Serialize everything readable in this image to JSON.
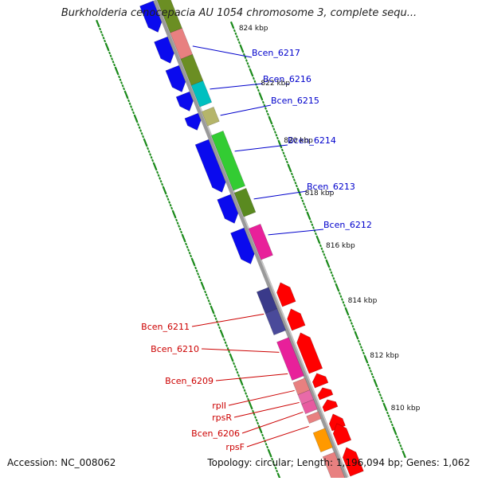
{
  "title": "Burkholderia cenocepacia AU 1054 chromosome 3, complete sequ...",
  "accession": "Accession: NC_008062",
  "topology": "Topology: circular; Length: 1,196,094 bp; Genes: 1,062",
  "colors": {
    "backbone": "#8a8a8a",
    "tick": "#1a8a1a",
    "forward_label": "#0000cc",
    "reverse_label": "#cc0000",
    "kbp_label": "#111111"
  },
  "kbp_labels": [
    "824 kbp",
    "822 kbp",
    "820 kbp",
    "818 kbp",
    "816 kbp",
    "814 kbp",
    "812 kbp",
    "810 kbp"
  ],
  "forward_genes": [
    "Bcen_6217",
    "Bcen_6216",
    "Bcen_6215",
    "Bcen_6214",
    "Bcen_6213",
    "Bcen_6212"
  ],
  "reverse_genes": [
    "Bcen_6211",
    "Bcen_6210",
    "Bcen_6209",
    "rplI",
    "rpsR",
    "Bcen_6206",
    "rpsF"
  ]
}
